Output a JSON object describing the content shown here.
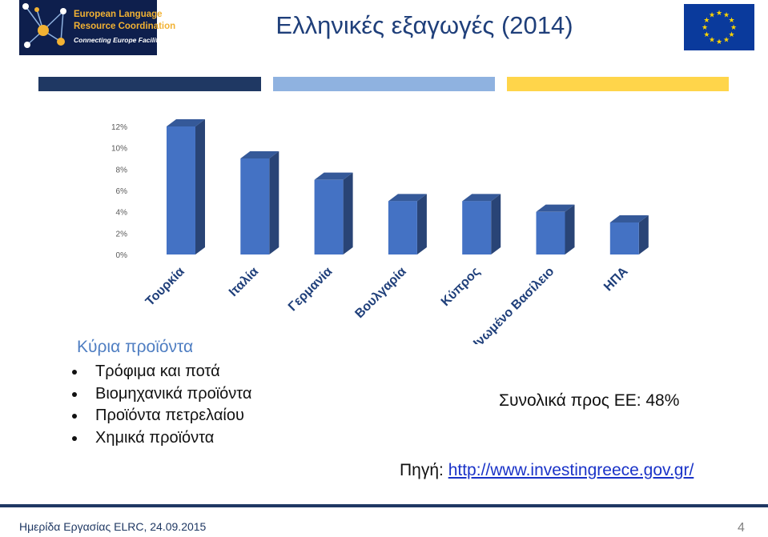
{
  "logo": {
    "line1": "European Language",
    "line2": "Resource Coordination",
    "tagline": "Connecting Europe Facility",
    "colors": {
      "background": "#0e1f4d",
      "text": "#f2b233",
      "node": "#f2b233"
    }
  },
  "title": "Ελληνικές εξαγωγές (2014)",
  "eu_flag": {
    "icon": "eu-flag-icon",
    "background": "#0a3a9c",
    "stars": "#ffd500"
  },
  "stripes": [
    "#1f3863",
    "#8fb2e0",
    "#ffd54a"
  ],
  "chart_data": {
    "type": "bar",
    "categories": [
      "Τουρκία",
      "Ιταλία",
      "Γερμανία",
      "Βουλγαρία",
      "Κύπρος",
      "Ηνωμένο Βασίλειο",
      "ΗΠΑ"
    ],
    "values": [
      12,
      9,
      7,
      5,
      5,
      4,
      3
    ],
    "ylim": [
      0,
      12
    ],
    "yticks": [
      "0%",
      "2%",
      "4%",
      "6%",
      "8%",
      "10%",
      "12%"
    ],
    "grid": false,
    "bar_color": "#4472c4",
    "style": "3d"
  },
  "products": {
    "heading": "Κύρια προϊόντα",
    "items": [
      "Τρόφιμα και ποτά",
      "Βιομηχανικά προϊόντα",
      "Προϊόντα πετρελαίου",
      "Χημικά προϊόντα"
    ]
  },
  "total": "Συνολικά προς ΕΕ: 48%",
  "source": {
    "label": "Πηγή: ",
    "link": "http://www.investingreece.gov.gr/"
  },
  "footer": {
    "text": "Ημερίδα Εργασίας ELRC, 24.09.2015",
    "page": "4"
  }
}
